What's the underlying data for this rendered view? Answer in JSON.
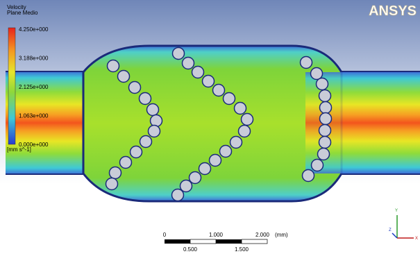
{
  "legend": {
    "title": "Velocity",
    "subtitle": "Plane Medio",
    "ticks": [
      "4.250e+000",
      "3.188e+000",
      "2.125e+000",
      "1.063e+000",
      "0.000e+000"
    ],
    "unit": "[mm s^-1]"
  },
  "logo": "ANSYS",
  "scale_bar": {
    "top_labels": [
      "0",
      "1.000",
      "2.000"
    ],
    "unit": "(mm)",
    "bottom_labels": [
      "0.500",
      "1.500"
    ]
  },
  "triad": {
    "y": "Y",
    "z": "Z",
    "x": "X"
  }
}
